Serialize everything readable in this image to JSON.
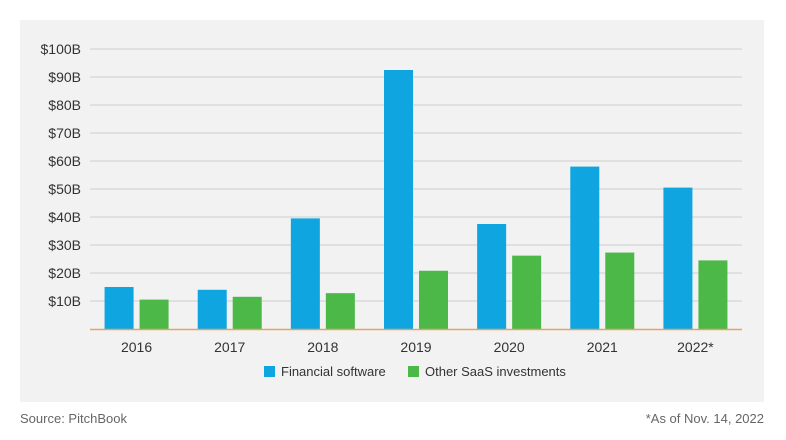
{
  "chart_data": {
    "type": "bar",
    "categories": [
      "2016",
      "2017",
      "2018",
      "2019",
      "2020",
      "2021",
      "2022*"
    ],
    "series": [
      {
        "name": "Financial software",
        "color": "#0ea5e0",
        "values": [
          15,
          14,
          39.5,
          92.5,
          37.5,
          58,
          50.5
        ]
      },
      {
        "name": "Other SaaS investments",
        "color": "#4cb848",
        "values": [
          10.5,
          11.5,
          12.8,
          20.8,
          26.2,
          27.3,
          24.5
        ]
      }
    ],
    "ylim": [
      0,
      100
    ],
    "yticks": [
      10,
      20,
      30,
      40,
      50,
      60,
      70,
      80,
      90,
      100
    ],
    "ytick_labels": [
      "$10B",
      "$20B",
      "$30B",
      "$40B",
      "$50B",
      "$60B",
      "$70B",
      "$80B",
      "$90B",
      "$100B"
    ],
    "grid": true,
    "legend": "bottom-center",
    "baseline_color": "#e8a066"
  },
  "footer": {
    "source": "Source: PitchBook",
    "note": "*As of Nov. 14, 2022"
  }
}
